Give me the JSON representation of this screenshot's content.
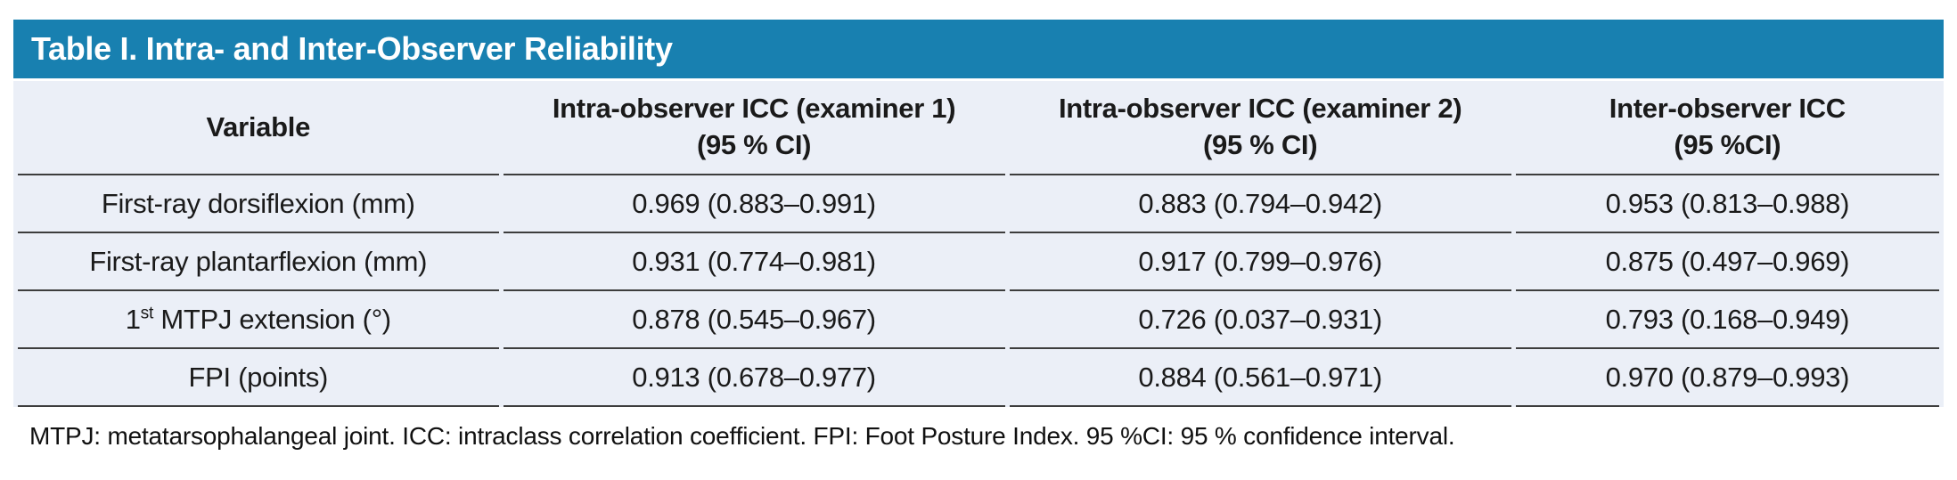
{
  "title": "Table I. Intra- and Inter-Observer Reliability",
  "colors": {
    "header_bar": "#1880B0",
    "table_background": "#EBEFF7",
    "rule_line": "#3d3d3d",
    "title_text": "#ffffff",
    "body_text": "#1a1a1a"
  },
  "table": {
    "columns": [
      {
        "label": "Variable",
        "sub": ""
      },
      {
        "label": "Intra-observer ICC (examiner 1)",
        "sub": "(95 % CI)"
      },
      {
        "label": "Intra-observer ICC (examiner 2)",
        "sub": "(95 % CI)"
      },
      {
        "label": "Inter-observer ICC",
        "sub": "(95 %CI)"
      }
    ],
    "rows": [
      {
        "variable": "First-ray dorsiflexion (mm)",
        "values": [
          "0.969 (0.883–0.991)",
          "0.883 (0.794–0.942)",
          "0.953 (0.813–0.988)"
        ]
      },
      {
        "variable": "First-ray plantarflexion (mm)",
        "values": [
          "0.931 (0.774–0.981)",
          "0.917 (0.799–0.976)",
          "0.875 (0.497–0.969)"
        ]
      },
      {
        "variable_parts": {
          "num": "1",
          "sup": "st",
          "rest": " MTPJ extension (°)"
        },
        "values": [
          "0.878 (0.545–0.967)",
          "0.726 (0.037–0.931)",
          "0.793 (0.168–0.949)"
        ]
      },
      {
        "variable": "FPI (points)",
        "values": [
          "0.913 (0.678–0.977)",
          "0.884 (0.561–0.971)",
          "0.970 (0.879–0.993)"
        ]
      }
    ]
  },
  "footnote": "MTPJ: metatarsophalangeal joint. ICC: intraclass correlation coefficient. FPI: Foot Posture Index. 95 %CI: 95 % confidence interval."
}
